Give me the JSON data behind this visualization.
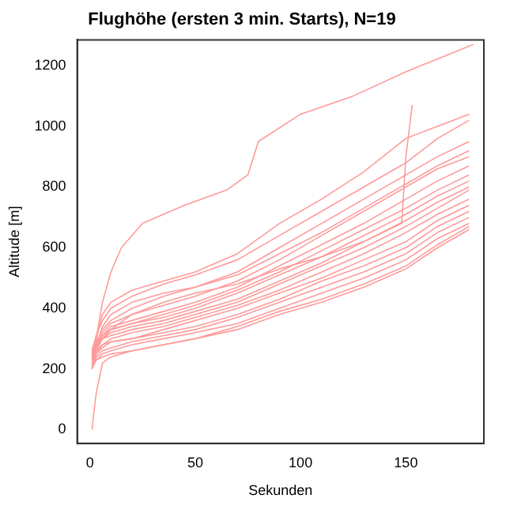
{
  "chart_data": {
    "type": "line",
    "title": "Flughöhe (ersten 3 min. Starts), N=19",
    "xlabel": "Sekunden",
    "ylabel": "Altitude [m]",
    "x": [
      1,
      3,
      6,
      10,
      20,
      35,
      50,
      70,
      90,
      110,
      130,
      150,
      165,
      180
    ],
    "xlim": [
      -6,
      187
    ],
    "xticks": [
      0,
      50,
      100,
      150
    ],
    "ylim": [
      -45,
      1285
    ],
    "yticks": [
      0,
      200,
      400,
      600,
      800,
      1000,
      1200
    ],
    "grid": false,
    "legend": false,
    "marker": "none",
    "line_style": "solid",
    "series": [
      {
        "color": "#ff9a9a",
        "x": [
          1,
          3,
          6,
          10,
          15,
          25,
          45,
          65,
          75,
          80,
          100,
          125,
          150,
          182
        ],
        "values": [
          250,
          300,
          420,
          520,
          600,
          680,
          740,
          790,
          840,
          950,
          1040,
          1100,
          1180,
          1270
        ]
      },
      {
        "color": "#ff9a9a",
        "values": [
          240,
          300,
          380,
          420,
          460,
          490,
          520,
          580,
          680,
          760,
          850,
          960,
          1000,
          1040
        ]
      },
      {
        "color": "#ff9a9a",
        "values": [
          260,
          310,
          360,
          400,
          440,
          480,
          510,
          560,
          640,
          720,
          800,
          880,
          960,
          1020
        ]
      },
      {
        "color": "#ff9a9a",
        "values": [
          230,
          280,
          340,
          380,
          420,
          450,
          470,
          520,
          600,
          680,
          760,
          840,
          900,
          950
        ]
      },
      {
        "color": "#ff9a9a",
        "values": [
          250,
          290,
          330,
          360,
          400,
          440,
          470,
          510,
          580,
          650,
          730,
          810,
          870,
          920
        ]
      },
      {
        "color": "#ff9a9a",
        "values": [
          220,
          270,
          320,
          350,
          380,
          410,
          440,
          490,
          560,
          640,
          720,
          800,
          860,
          900
        ]
      },
      {
        "color": "#ff9a9a",
        "values": [
          240,
          280,
          310,
          340,
          360,
          390,
          420,
          470,
          540,
          610,
          680,
          760,
          820,
          870
        ]
      },
      {
        "color": "#ff9a9a",
        "values": [
          260,
          290,
          310,
          330,
          350,
          380,
          410,
          460,
          520,
          590,
          660,
          730,
          790,
          840
        ]
      },
      {
        "color": "#ff9a9a",
        "values": [
          210,
          260,
          300,
          330,
          350,
          370,
          400,
          450,
          510,
          570,
          640,
          710,
          770,
          820
        ]
      },
      {
        "color": "#ff9a9a",
        "values": [
          230,
          270,
          300,
          320,
          340,
          360,
          390,
          430,
          490,
          550,
          620,
          690,
          750,
          800
        ]
      },
      {
        "color": "#ff9a9a",
        "values": [
          250,
          280,
          300,
          310,
          330,
          350,
          380,
          420,
          480,
          540,
          600,
          670,
          730,
          790
        ]
      },
      {
        "color": "#ff9a9a",
        "values": [
          200,
          250,
          280,
          300,
          320,
          340,
          370,
          410,
          460,
          520,
          580,
          650,
          710,
          760
        ]
      },
      {
        "color": "#ff9a9a",
        "values": [
          220,
          250,
          270,
          290,
          300,
          330,
          360,
          400,
          450,
          500,
          560,
          620,
          690,
          740
        ]
      },
      {
        "color": "#ff9a9a",
        "values": [
          240,
          260,
          280,
          290,
          300,
          320,
          340,
          380,
          430,
          490,
          540,
          600,
          670,
          720
        ]
      },
      {
        "color": "#ff9a9a",
        "values": [
          210,
          240,
          260,
          270,
          290,
          310,
          330,
          370,
          420,
          470,
          520,
          580,
          650,
          700
        ]
      },
      {
        "color": "#ff9a9a",
        "values": [
          200,
          230,
          250,
          260,
          280,
          300,
          320,
          350,
          400,
          450,
          500,
          560,
          630,
          680
        ]
      },
      {
        "color": "#ff9a9a",
        "values": [
          0,
          120,
          220,
          240,
          260,
          280,
          300,
          340,
          390,
          430,
          480,
          540,
          610,
          670
        ]
      },
      {
        "color": "#ff9a9a",
        "values": [
          220,
          230,
          240,
          250,
          260,
          280,
          300,
          330,
          380,
          420,
          470,
          530,
          600,
          660
        ]
      },
      {
        "color": "#ff9a9a",
        "x": [
          1,
          3,
          6,
          10,
          20,
          35,
          50,
          70,
          90,
          110,
          130,
          148,
          150,
          153
        ],
        "values": [
          230,
          270,
          310,
          330,
          380,
          420,
          450,
          480,
          530,
          570,
          620,
          680,
          900,
          1070
        ]
      }
    ]
  }
}
